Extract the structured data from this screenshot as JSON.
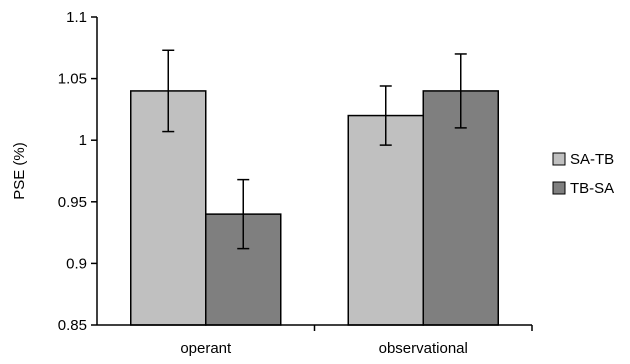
{
  "chart_data": {
    "type": "bar",
    "categories": [
      "operant",
      "observational"
    ],
    "series": [
      {
        "name": "SA-TB",
        "values": [
          1.04,
          1.02
        ],
        "errors": [
          0.033,
          0.024
        ],
        "color": "#c0c0c0"
      },
      {
        "name": "TB-SA",
        "values": [
          0.94,
          1.04
        ],
        "errors": [
          0.028,
          0.03
        ],
        "color": "#7f7f7f"
      }
    ],
    "title": "",
    "xlabel": "",
    "ylabel": "PSE (%)",
    "ylim": [
      0.85,
      1.1
    ],
    "yticks": [
      0.85,
      0.9,
      0.95,
      1,
      1.05,
      1.1
    ],
    "ytick_labels": [
      "0.85",
      "0.9",
      "0.95",
      "1",
      "1.05",
      "1.1"
    ],
    "grid": false,
    "legend_position": "right"
  }
}
